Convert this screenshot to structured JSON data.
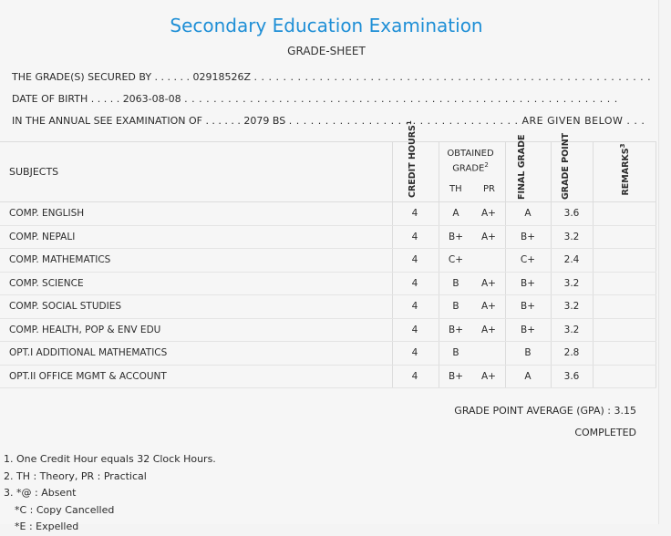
{
  "header": {
    "title": "Secondary Education Examination",
    "subtitle": "GRADE-SHEET"
  },
  "info": {
    "line1_prefix": "THE GRADE(S) SECURED BY . . . . . .",
    "symbol_no": "02918526Z",
    "line1_suffix": ". . . . . . . . . . . . . . . . . . . . . . . . . . . . . . . . . . . . . . . . . . . . . . . . . . . . . . .",
    "line2_prefix": "DATE OF BIRTH . . . . .",
    "dob": "2063-08-08",
    "line2_suffix": ". . . . . . . . . . . . . . . . . . . . . . . . . . . . . . . . . . . . . . . . . . . . . . . . . . . . . . . . . . . .",
    "line3_prefix": "IN THE ANNUAL SEE EXAMINATION OF . . . . . .",
    "exam_year": "2079 BS",
    "line3_suffix": ". . . . . . . . . . . . . . . . . . . . . . . . . . . . . . . . ARE GIVEN BELOW . . ."
  },
  "table": {
    "headers": {
      "subjects": "SUBJECTS",
      "credit_hours": "CREDIT HOURS",
      "credit_sup": "1",
      "obtained_grade": "OBTAINED GRADE",
      "obtained_sup": "2",
      "th": "TH",
      "pr": "PR",
      "final_grade": "FINAL GRADE",
      "grade_point": "GRADE POINT",
      "remarks": "REMARKS",
      "remarks_sup": "3"
    },
    "rows": [
      {
        "subject": "COMP. ENGLISH",
        "credit": "4",
        "th": "A",
        "pr": "A+",
        "final": "A",
        "gp": "3.6"
      },
      {
        "subject": "COMP. NEPALI",
        "credit": "4",
        "th": "B+",
        "pr": "A+",
        "final": "B+",
        "gp": "3.2"
      },
      {
        "subject": "COMP. MATHEMATICS",
        "credit": "4",
        "th": "C+",
        "pr": "",
        "final": "C+",
        "gp": "2.4"
      },
      {
        "subject": "COMP. SCIENCE",
        "credit": "4",
        "th": "B",
        "pr": "A+",
        "final": "B+",
        "gp": "3.2"
      },
      {
        "subject": "COMP. SOCIAL STUDIES",
        "credit": "4",
        "th": "B",
        "pr": "A+",
        "final": "B+",
        "gp": "3.2"
      },
      {
        "subject": "COMP. HEALTH, POP & ENV EDU",
        "credit": "4",
        "th": "B+",
        "pr": "A+",
        "final": "B+",
        "gp": "3.2"
      },
      {
        "subject": "OPT.I ADDITIONAL MATHEMATICS",
        "credit": "4",
        "th": "B",
        "pr": "",
        "final": "B",
        "gp": "2.8"
      },
      {
        "subject": "OPT.II OFFICE MGMT & ACCOUNT",
        "credit": "4",
        "th": "B+",
        "pr": "A+",
        "final": "A",
        "gp": "3.6"
      }
    ]
  },
  "summary": {
    "gpa_label": "GRADE POINT AVERAGE (GPA) : 3.15",
    "status": "COMPLETED"
  },
  "notes": [
    "1. One Credit Hour equals 32 Clock Hours.",
    "2. TH : Theory, PR : Practical",
    "3. *@ : Absent",
    "*C : Copy Cancelled",
    "*E : Expelled"
  ],
  "colors": {
    "title": "#1f8fd6",
    "background": "#f6f6f6",
    "lines": "#dcdcdc"
  }
}
